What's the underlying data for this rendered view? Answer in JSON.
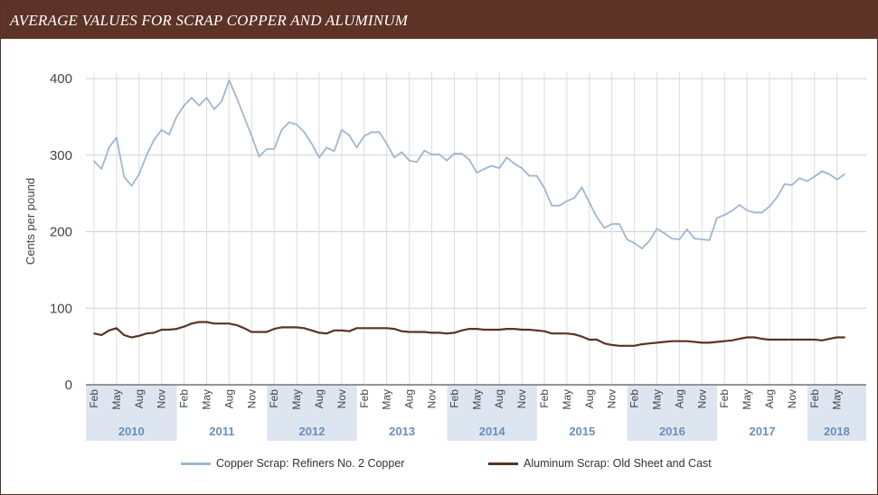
{
  "title": "AVERAGE VALUES FOR SCRAP COPPER AND ALUMINUM",
  "chart_data": {
    "type": "line",
    "ylabel": "Cents per pound",
    "xlabel": "",
    "ylim": [
      0,
      400
    ],
    "yticks": [
      0,
      100,
      200,
      300,
      400
    ],
    "grid": true,
    "legend_position": "bottom",
    "month_tick_labels": [
      "Feb",
      "May",
      "Aug",
      "Nov"
    ],
    "years": [
      "2010",
      "2011",
      "2012",
      "2013",
      "2014",
      "2015",
      "2016",
      "2017",
      "2018"
    ],
    "x_start": "2010-02",
    "x_end": "2018-05",
    "series": [
      {
        "name": "Copper Scrap: Refiners No. 2 Copper",
        "color": "#9fb7cf",
        "values": [
          292,
          282,
          310,
          323,
          272,
          260,
          275,
          300,
          320,
          333,
          327,
          350,
          365,
          375,
          365,
          375,
          360,
          370,
          398,
          375,
          350,
          325,
          298,
          308,
          308,
          333,
          343,
          340,
          330,
          315,
          297,
          310,
          305,
          333,
          326,
          310,
          325,
          330,
          330,
          315,
          297,
          304,
          293,
          291,
          306,
          301,
          301,
          293,
          302,
          302,
          294,
          277,
          282,
          286,
          283,
          297,
          289,
          283,
          273,
          273,
          257,
          234,
          234,
          240,
          244,
          258,
          238,
          219,
          205,
          210,
          210,
          190,
          185,
          178,
          188,
          204,
          198,
          191,
          190,
          203,
          191,
          190,
          189,
          218,
          222,
          227,
          235,
          228,
          225,
          225,
          233,
          245,
          262,
          261,
          270,
          266,
          272,
          279,
          275,
          268,
          275
        ]
      },
      {
        "name": "Aluminum Scrap: Old Sheet and Cast",
        "color": "#5c3326",
        "values": [
          67,
          65,
          71,
          74,
          65,
          62,
          64,
          67,
          68,
          72,
          72,
          73,
          76,
          80,
          82,
          82,
          80,
          80,
          80,
          78,
          74,
          69,
          69,
          69,
          73,
          75,
          75,
          75,
          74,
          71,
          68,
          67,
          71,
          71,
          70,
          74,
          74,
          74,
          74,
          74,
          73,
          70,
          69,
          69,
          69,
          68,
          68,
          67,
          68,
          71,
          73,
          73,
          72,
          72,
          72,
          73,
          73,
          72,
          72,
          71,
          70,
          67,
          67,
          67,
          66,
          63,
          59,
          59,
          54,
          52,
          51,
          51,
          51,
          53,
          54,
          55,
          56,
          57,
          57,
          57,
          56,
          55,
          55,
          56,
          57,
          58,
          60,
          62,
          62,
          60,
          59,
          59,
          59,
          59,
          59,
          59,
          59,
          58,
          60,
          62,
          62
        ]
      }
    ]
  }
}
